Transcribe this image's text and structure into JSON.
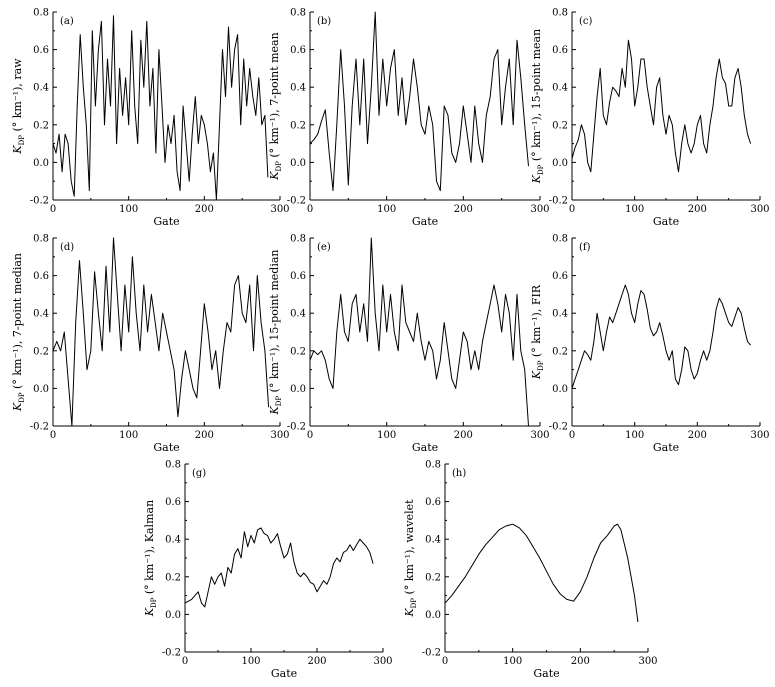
{
  "figure": {
    "common_xlabel": "Gate",
    "ylabel_symbol": "K",
    "ylabel_subscript": "DP",
    "ylabel_units": "(° km⁻¹),"
  },
  "chart_data": [
    {
      "type": "line",
      "panel": "(a)",
      "ylabel_suffix": "raw",
      "xlabel": "Gate",
      "xlim": [
        0,
        300
      ],
      "ylim": [
        -0.2,
        0.8
      ],
      "xticks": [
        0,
        100,
        200,
        300
      ],
      "yticks": [
        -0.2,
        0.0,
        0.2,
        0.4,
        0.6,
        0.8
      ],
      "x": [
        0,
        4,
        8,
        12,
        16,
        20,
        24,
        28,
        32,
        36,
        40,
        44,
        48,
        52,
        56,
        60,
        64,
        68,
        72,
        76,
        80,
        84,
        88,
        92,
        96,
        100,
        104,
        108,
        112,
        116,
        120,
        124,
        128,
        132,
        136,
        140,
        144,
        148,
        152,
        156,
        160,
        164,
        168,
        172,
        176,
        180,
        184,
        188,
        192,
        196,
        200,
        204,
        208,
        212,
        216,
        220,
        224,
        228,
        232,
        236,
        240,
        244,
        248,
        252,
        256,
        260,
        264,
        268,
        272,
        276,
        280,
        284
      ],
      "y": [
        0.1,
        0.05,
        0.15,
        -0.05,
        0.15,
        0.1,
        -0.1,
        -0.18,
        0.3,
        0.68,
        0.4,
        0.2,
        -0.15,
        0.7,
        0.3,
        0.6,
        0.75,
        0.2,
        0.55,
        0.3,
        0.78,
        0.1,
        0.5,
        0.25,
        0.45,
        0.2,
        0.7,
        0.3,
        0.1,
        0.65,
        0.4,
        0.75,
        0.3,
        0.5,
        0.05,
        0.6,
        0.3,
        0.0,
        0.2,
        0.1,
        0.25,
        -0.05,
        -0.15,
        0.3,
        0.1,
        -0.1,
        0.15,
        0.35,
        0.1,
        0.25,
        0.2,
        0.1,
        -0.05,
        0.05,
        -0.2,
        0.2,
        0.6,
        0.35,
        0.72,
        0.4,
        0.6,
        0.68,
        0.2,
        0.55,
        0.3,
        0.5,
        0.35,
        0.25,
        0.45,
        0.2,
        0.25,
        -0.08
      ]
    },
    {
      "type": "line",
      "panel": "(b)",
      "ylabel_suffix": "7-point mean",
      "xlabel": "Gate",
      "xlim": [
        0,
        300
      ],
      "ylim": [
        -0.2,
        0.8
      ],
      "xticks": [
        0,
        100,
        200,
        300
      ],
      "yticks": [
        -0.2,
        0.0,
        0.2,
        0.4,
        0.6,
        0.8
      ],
      "x": [
        0,
        5,
        10,
        15,
        20,
        25,
        30,
        35,
        40,
        45,
        50,
        55,
        60,
        65,
        70,
        75,
        80,
        85,
        90,
        95,
        100,
        105,
        110,
        115,
        120,
        125,
        130,
        135,
        140,
        145,
        150,
        155,
        160,
        165,
        170,
        175,
        180,
        185,
        190,
        195,
        200,
        205,
        210,
        215,
        220,
        225,
        230,
        235,
        240,
        245,
        250,
        255,
        260,
        265,
        270,
        275,
        280,
        285
      ],
      "y": [
        0.1,
        0.12,
        0.15,
        0.22,
        0.28,
        0.05,
        -0.15,
        0.2,
        0.6,
        0.3,
        -0.12,
        0.3,
        0.55,
        0.2,
        0.55,
        0.1,
        0.4,
        0.8,
        0.25,
        0.55,
        0.3,
        0.5,
        0.6,
        0.25,
        0.45,
        0.2,
        0.35,
        0.55,
        0.4,
        0.2,
        0.15,
        0.3,
        0.2,
        -0.1,
        -0.15,
        0.3,
        0.25,
        0.05,
        0.0,
        0.1,
        0.3,
        0.15,
        0.0,
        0.3,
        0.1,
        0.0,
        0.25,
        0.35,
        0.55,
        0.6,
        0.2,
        0.4,
        0.55,
        0.2,
        0.65,
        0.45,
        0.2,
        -0.02
      ]
    },
    {
      "type": "line",
      "panel": "(c)",
      "ylabel_suffix": "15-point mean",
      "xlabel": "Gate",
      "xlim": [
        0,
        300
      ],
      "ylim": [
        -0.2,
        0.8
      ],
      "xticks": [
        0,
        100,
        200,
        300
      ],
      "yticks": [
        -0.2,
        0.0,
        0.2,
        0.4,
        0.6,
        0.8
      ],
      "x": [
        0,
        5,
        10,
        15,
        20,
        25,
        30,
        35,
        40,
        45,
        50,
        55,
        60,
        65,
        70,
        75,
        80,
        85,
        90,
        95,
        100,
        105,
        110,
        115,
        120,
        125,
        130,
        135,
        140,
        145,
        150,
        155,
        160,
        165,
        170,
        175,
        180,
        185,
        190,
        195,
        200,
        205,
        210,
        215,
        220,
        225,
        230,
        235,
        240,
        245,
        250,
        255,
        260,
        265,
        270,
        275,
        280,
        285
      ],
      "y": [
        0.02,
        0.08,
        0.12,
        0.2,
        0.15,
        0.0,
        -0.05,
        0.15,
        0.35,
        0.5,
        0.25,
        0.2,
        0.32,
        0.4,
        0.38,
        0.35,
        0.5,
        0.4,
        0.65,
        0.55,
        0.3,
        0.4,
        0.55,
        0.55,
        0.4,
        0.3,
        0.2,
        0.4,
        0.45,
        0.25,
        0.15,
        0.25,
        0.2,
        0.05,
        -0.05,
        0.1,
        0.2,
        0.1,
        0.05,
        0.1,
        0.2,
        0.25,
        0.1,
        0.05,
        0.2,
        0.3,
        0.45,
        0.55,
        0.45,
        0.42,
        0.3,
        0.3,
        0.45,
        0.5,
        0.4,
        0.25,
        0.15,
        0.1
      ]
    },
    {
      "type": "line",
      "panel": "(d)",
      "ylabel_suffix": "7-point median",
      "xlabel": "Gate",
      "xlim": [
        0,
        300
      ],
      "ylim": [
        -0.2,
        0.8
      ],
      "xticks": [
        0,
        100,
        200,
        300
      ],
      "yticks": [
        -0.2,
        0.0,
        0.2,
        0.4,
        0.6,
        0.8
      ],
      "x": [
        0,
        5,
        10,
        15,
        20,
        25,
        30,
        35,
        40,
        45,
        50,
        55,
        60,
        65,
        70,
        75,
        80,
        85,
        90,
        95,
        100,
        105,
        110,
        115,
        120,
        125,
        130,
        135,
        140,
        145,
        150,
        155,
        160,
        165,
        170,
        175,
        180,
        185,
        190,
        195,
        200,
        205,
        210,
        215,
        220,
        225,
        230,
        235,
        240,
        245,
        250,
        255,
        260,
        265,
        270,
        275,
        280,
        285
      ],
      "y": [
        0.2,
        0.25,
        0.2,
        0.3,
        0.05,
        -0.2,
        0.35,
        0.68,
        0.4,
        0.1,
        0.2,
        0.62,
        0.4,
        0.2,
        0.65,
        0.3,
        0.8,
        0.5,
        0.2,
        0.55,
        0.3,
        0.7,
        0.4,
        0.2,
        0.55,
        0.3,
        0.5,
        0.35,
        0.2,
        0.4,
        0.3,
        0.2,
        0.1,
        -0.15,
        0.05,
        0.2,
        0.1,
        0.0,
        -0.05,
        0.2,
        0.45,
        0.3,
        0.1,
        0.2,
        0.0,
        0.2,
        0.35,
        0.3,
        0.55,
        0.6,
        0.4,
        0.35,
        0.55,
        0.2,
        0.6,
        0.35,
        0.2,
        -0.1
      ]
    },
    {
      "type": "line",
      "panel": "(e)",
      "ylabel_suffix": "15-point median",
      "xlabel": "Gate",
      "xlim": [
        0,
        300
      ],
      "ylim": [
        -0.2,
        0.8
      ],
      "xticks": [
        0,
        100,
        200,
        300
      ],
      "yticks": [
        -0.2,
        0.0,
        0.2,
        0.4,
        0.6,
        0.8
      ],
      "x": [
        0,
        5,
        10,
        15,
        20,
        25,
        30,
        35,
        40,
        45,
        50,
        55,
        60,
        65,
        70,
        75,
        80,
        85,
        90,
        95,
        100,
        105,
        110,
        115,
        120,
        125,
        130,
        135,
        140,
        145,
        150,
        155,
        160,
        165,
        170,
        175,
        180,
        185,
        190,
        195,
        200,
        205,
        210,
        215,
        220,
        225,
        230,
        235,
        240,
        245,
        250,
        255,
        260,
        265,
        270,
        275,
        280,
        285
      ],
      "y": [
        0.15,
        0.2,
        0.18,
        0.2,
        0.15,
        0.05,
        0.0,
        0.3,
        0.5,
        0.3,
        0.25,
        0.45,
        0.5,
        0.3,
        0.45,
        0.25,
        0.8,
        0.4,
        0.2,
        0.55,
        0.3,
        0.5,
        0.3,
        0.2,
        0.55,
        0.35,
        0.3,
        0.25,
        0.4,
        0.25,
        0.15,
        0.25,
        0.2,
        0.05,
        0.15,
        0.35,
        0.2,
        0.05,
        0.0,
        0.15,
        0.3,
        0.25,
        0.1,
        0.2,
        0.1,
        0.25,
        0.35,
        0.45,
        0.55,
        0.45,
        0.3,
        0.5,
        0.4,
        0.15,
        0.5,
        0.2,
        0.1,
        -0.2
      ]
    },
    {
      "type": "line",
      "panel": "(f)",
      "ylabel_suffix": "FIR",
      "xlabel": "Gate",
      "xlim": [
        0,
        300
      ],
      "ylim": [
        -0.2,
        0.8
      ],
      "xticks": [
        0,
        100,
        200,
        300
      ],
      "yticks": [
        -0.2,
        0.0,
        0.2,
        0.4,
        0.6,
        0.8
      ],
      "x": [
        0,
        5,
        10,
        15,
        20,
        25,
        30,
        35,
        40,
        45,
        50,
        55,
        60,
        65,
        70,
        75,
        80,
        85,
        90,
        95,
        100,
        105,
        110,
        115,
        120,
        125,
        130,
        135,
        140,
        145,
        150,
        155,
        160,
        165,
        170,
        175,
        180,
        185,
        190,
        195,
        200,
        205,
        210,
        215,
        220,
        225,
        230,
        235,
        240,
        245,
        250,
        255,
        260,
        265,
        270,
        275,
        280,
        285
      ],
      "y": [
        0.0,
        0.05,
        0.1,
        0.15,
        0.2,
        0.18,
        0.15,
        0.25,
        0.4,
        0.3,
        0.2,
        0.3,
        0.38,
        0.35,
        0.4,
        0.45,
        0.5,
        0.55,
        0.5,
        0.4,
        0.35,
        0.45,
        0.52,
        0.5,
        0.42,
        0.32,
        0.28,
        0.3,
        0.35,
        0.28,
        0.2,
        0.15,
        0.2,
        0.05,
        0.02,
        0.1,
        0.22,
        0.2,
        0.1,
        0.05,
        0.08,
        0.15,
        0.2,
        0.15,
        0.2,
        0.3,
        0.42,
        0.48,
        0.45,
        0.4,
        0.35,
        0.33,
        0.38,
        0.43,
        0.4,
        0.32,
        0.25,
        0.23
      ]
    },
    {
      "type": "line",
      "panel": "(g)",
      "ylabel_suffix": "Kalman",
      "xlabel": "Gate",
      "xlim": [
        0,
        300
      ],
      "ylim": [
        -0.2,
        0.8
      ],
      "xticks": [
        0,
        100,
        200,
        300
      ],
      "yticks": [
        -0.2,
        0.0,
        0.2,
        0.4,
        0.6,
        0.8
      ],
      "x": [
        0,
        5,
        10,
        15,
        20,
        25,
        30,
        35,
        40,
        45,
        50,
        55,
        60,
        65,
        70,
        75,
        80,
        85,
        90,
        95,
        100,
        105,
        110,
        115,
        120,
        125,
        130,
        135,
        140,
        145,
        150,
        155,
        160,
        165,
        170,
        175,
        180,
        185,
        190,
        195,
        200,
        205,
        210,
        215,
        220,
        225,
        230,
        235,
        240,
        245,
        250,
        255,
        260,
        265,
        270,
        275,
        280,
        285
      ],
      "y": [
        0.06,
        0.07,
        0.08,
        0.1,
        0.12,
        0.06,
        0.04,
        0.12,
        0.2,
        0.16,
        0.2,
        0.22,
        0.15,
        0.25,
        0.22,
        0.32,
        0.35,
        0.3,
        0.44,
        0.36,
        0.42,
        0.38,
        0.45,
        0.46,
        0.43,
        0.42,
        0.38,
        0.4,
        0.43,
        0.36,
        0.3,
        0.32,
        0.38,
        0.28,
        0.22,
        0.2,
        0.22,
        0.2,
        0.17,
        0.16,
        0.12,
        0.15,
        0.18,
        0.16,
        0.2,
        0.27,
        0.3,
        0.28,
        0.33,
        0.34,
        0.37,
        0.34,
        0.37,
        0.4,
        0.38,
        0.36,
        0.33,
        0.27
      ]
    },
    {
      "type": "line",
      "panel": "(h)",
      "ylabel_suffix": "wavelet",
      "xlabel": "Gate",
      "xlim": [
        0,
        300
      ],
      "ylim": [
        -0.2,
        0.8
      ],
      "xticks": [
        0,
        100,
        200,
        300
      ],
      "yticks": [
        -0.2,
        0.0,
        0.2,
        0.4,
        0.6,
        0.8
      ],
      "x": [
        0,
        10,
        20,
        30,
        40,
        50,
        60,
        70,
        80,
        90,
        100,
        110,
        120,
        130,
        140,
        150,
        160,
        170,
        180,
        190,
        200,
        210,
        220,
        230,
        240,
        250,
        255,
        260,
        270,
        280,
        285
      ],
      "y": [
        0.06,
        0.1,
        0.15,
        0.2,
        0.26,
        0.32,
        0.37,
        0.41,
        0.45,
        0.47,
        0.48,
        0.46,
        0.42,
        0.36,
        0.3,
        0.23,
        0.16,
        0.11,
        0.08,
        0.07,
        0.12,
        0.2,
        0.3,
        0.38,
        0.42,
        0.47,
        0.48,
        0.45,
        0.3,
        0.1,
        -0.04
      ]
    }
  ]
}
